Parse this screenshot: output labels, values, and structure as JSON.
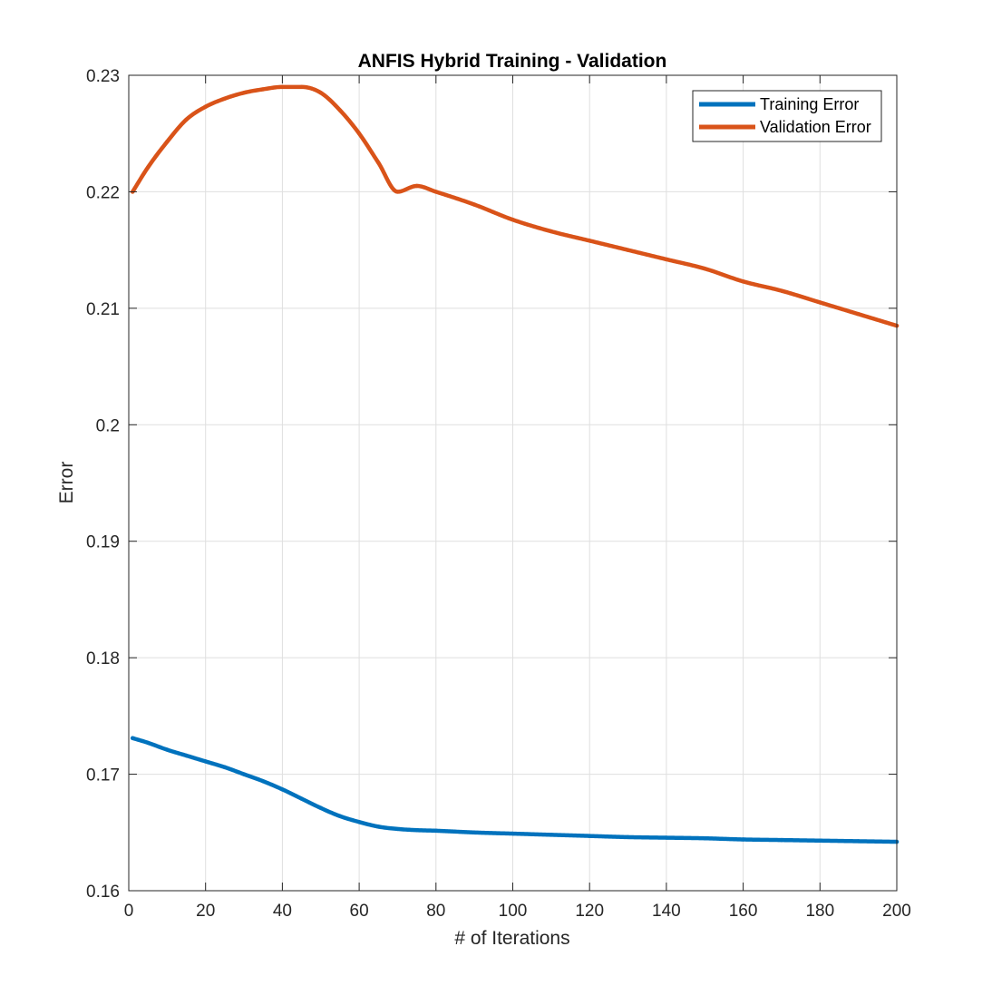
{
  "chart_data": {
    "type": "line",
    "title": "ANFIS Hybrid Training - Validation",
    "xlabel": "# of Iterations",
    "ylabel": "Error",
    "xlim": [
      0,
      200
    ],
    "ylim": [
      0.16,
      0.23
    ],
    "xticks": [
      0,
      20,
      40,
      60,
      80,
      100,
      120,
      140,
      160,
      180,
      200
    ],
    "yticks": [
      0.16,
      0.17,
      0.18,
      0.19,
      0.2,
      0.21,
      0.22,
      0.23
    ],
    "xtick_labels": [
      "0",
      "20",
      "40",
      "60",
      "80",
      "100",
      "120",
      "140",
      "160",
      "180",
      "200"
    ],
    "ytick_labels": [
      "0.16",
      "0.17",
      "0.18",
      "0.19",
      "0.2",
      "0.21",
      "0.22",
      "0.23"
    ],
    "grid": true,
    "legend_position": "top-right",
    "series": [
      {
        "name": "Training Error",
        "color": "#0072BD",
        "x": [
          1,
          5,
          10,
          15,
          20,
          25,
          30,
          35,
          40,
          45,
          50,
          55,
          60,
          65,
          70,
          75,
          80,
          90,
          100,
          110,
          120,
          130,
          140,
          150,
          160,
          170,
          180,
          190,
          200
        ],
        "y": [
          0.1731,
          0.1727,
          0.1721,
          0.1716,
          0.1711,
          0.1706,
          0.17,
          0.1694,
          0.1687,
          0.1679,
          0.1671,
          0.1664,
          0.1659,
          0.1655,
          0.1653,
          0.1652,
          0.16515,
          0.165,
          0.1649,
          0.1648,
          0.1647,
          0.1646,
          0.16455,
          0.1645,
          0.1644,
          0.16435,
          0.1643,
          0.16425,
          0.1642
        ]
      },
      {
        "name": "Validation Error",
        "color": "#D95319",
        "x": [
          1,
          5,
          10,
          15,
          20,
          25,
          30,
          35,
          40,
          45,
          50,
          55,
          60,
          65,
          70,
          75,
          80,
          90,
          100,
          110,
          120,
          130,
          140,
          150,
          160,
          170,
          180,
          190,
          200
        ],
        "y": [
          0.22,
          0.2221,
          0.2243,
          0.2262,
          0.2273,
          0.228,
          0.2285,
          0.2288,
          0.229,
          0.229,
          0.2285,
          0.227,
          0.225,
          0.2225,
          0.22,
          0.2205,
          0.22,
          0.2189,
          0.2176,
          0.2166,
          0.2158,
          0.215,
          0.2142,
          0.2134,
          0.2123,
          0.2115,
          0.2105,
          0.2095,
          0.2085
        ]
      }
    ]
  }
}
